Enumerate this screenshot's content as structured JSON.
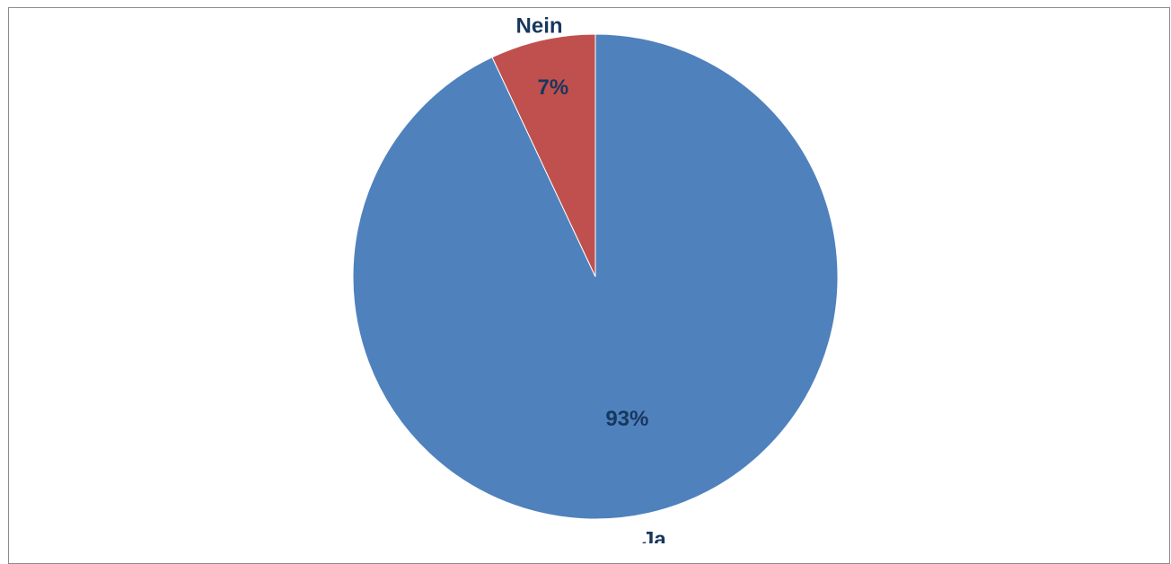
{
  "chart_data": {
    "type": "pie",
    "title": "",
    "start_angle_deg": 0,
    "direction": "clockwise",
    "slices": [
      {
        "label": "Ja",
        "value": 93,
        "value_label": "93%",
        "color": "#4f81bd"
      },
      {
        "label": "Nein",
        "value": 7,
        "value_label": "7%",
        "color": "#c0504d"
      }
    ],
    "legend": "none",
    "label_color": "#17375e"
  }
}
